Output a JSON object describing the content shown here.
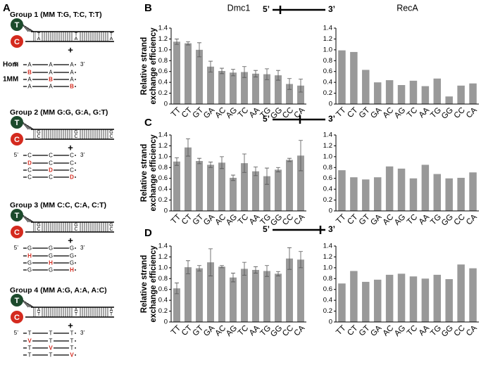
{
  "panels": [
    "A",
    "B",
    "C",
    "D"
  ],
  "substrates": [
    {
      "left": "5’",
      "right": "3’"
    },
    {
      "left": "5’",
      "right": "3’"
    },
    {
      "left": "5’",
      "right": "3’"
    }
  ],
  "diagram": {
    "hom": "Hom",
    "mm": "1MM",
    "plus": "+",
    "five": "5’",
    "three": "3’",
    "donor_top": "T",
    "donor_bottom": "C",
    "groups": [
      {
        "title": "Group 1 (MM T:G, T:C, T:T)",
        "pair": [
          "T",
          "A"
        ],
        "base": "A",
        "mismatch": "B"
      },
      {
        "title": "Group 2 (MM G:G, G:A, G:T)",
        "pair": [
          "G",
          "C"
        ],
        "base": "C",
        "mismatch": "D"
      },
      {
        "title": "Group 3 (MM C:C, C:A, C:T)",
        "pair": [
          "G",
          "C"
        ],
        "base": "G",
        "mismatch": "H"
      },
      {
        "title": "Group 4 (MM A:G, A:A, A:C)",
        "pair": [
          "A",
          "T"
        ],
        "base": "T",
        "mismatch": "V"
      }
    ]
  },
  "chart_data": [
    {
      "type": "bar",
      "title": "Dmc1",
      "ylabel": [
        "Relative strand",
        "exchange efficiency"
      ],
      "color": "#999999",
      "categories": [
        "TT",
        "CT",
        "GT",
        "GA",
        "AC",
        "AG",
        "TC",
        "AA",
        "TG",
        "GG",
        "CC",
        "CA"
      ],
      "values": [
        1.15,
        1.12,
        1.0,
        0.69,
        0.61,
        0.58,
        0.59,
        0.56,
        0.55,
        0.53,
        0.37,
        0.34
      ],
      "errors": [
        0.05,
        0.03,
        0.13,
        0.1,
        0.05,
        0.06,
        0.1,
        0.06,
        0.1,
        0.09,
        0.1,
        0.12
      ],
      "ylim": [
        0,
        1.4
      ],
      "yticks": [
        0,
        0.2,
        0.4,
        0.6,
        0.8,
        {
          "value": 1,
          "label": "1.0"
        },
        1.2,
        1.4
      ]
    },
    {
      "type": "bar",
      "title": "RecA",
      "color": "#999999",
      "categories": [
        "TT",
        "CT",
        "GT",
        "GA",
        "AC",
        "AG",
        "TC",
        "AA",
        "TG",
        "GG",
        "CC",
        "CA"
      ],
      "values": [
        0.99,
        0.96,
        0.63,
        0.4,
        0.44,
        0.35,
        0.43,
        0.33,
        0.47,
        0.14,
        0.34,
        0.38
      ],
      "ylim": [
        0,
        1.4
      ],
      "yticks": [
        0,
        0.2,
        0.4,
        0.6,
        0.8,
        {
          "value": 1,
          "label": "1.0"
        },
        1.2,
        1.4
      ]
    },
    {
      "type": "bar",
      "ylabel": [
        "Relative strand",
        "exchange efficiency"
      ],
      "color": "#999999",
      "categories": [
        "TT",
        "CT",
        "GT",
        "GA",
        "AC",
        "AG",
        "TC",
        "AA",
        "TG",
        "GG",
        "CC",
        "CA"
      ],
      "values": [
        0.91,
        1.17,
        0.92,
        0.85,
        0.89,
        0.61,
        0.88,
        0.73,
        0.64,
        0.76,
        0.94,
        1.02
      ],
      "errors": [
        0.07,
        0.16,
        0.05,
        0.05,
        0.11,
        0.05,
        0.17,
        0.08,
        0.15,
        0.04,
        0.03,
        0.28
      ],
      "ylim": [
        0,
        1.4
      ],
      "yticks": [
        0,
        0.2,
        0.4,
        0.6,
        0.8,
        {
          "value": 1,
          "label": "1.0"
        },
        1.2,
        1.4
      ]
    },
    {
      "type": "bar",
      "color": "#999999",
      "categories": [
        "TT",
        "CT",
        "GT",
        "GA",
        "AC",
        "AG",
        "TC",
        "AA",
        "TG",
        "GG",
        "CC",
        "CA"
      ],
      "values": [
        0.75,
        0.62,
        0.58,
        0.62,
        0.82,
        0.78,
        0.6,
        0.85,
        0.68,
        0.6,
        0.61,
        0.71
      ],
      "ylim": [
        0,
        1.4
      ],
      "yticks": [
        0,
        0.2,
        0.4,
        0.6,
        0.8,
        {
          "value": 1,
          "label": "1.0"
        },
        1.2,
        1.4
      ]
    },
    {
      "type": "bar",
      "ylabel": [
        "Relative strand",
        "exchange efficiency"
      ],
      "color": "#999999",
      "categories": [
        "TT",
        "CT",
        "GT",
        "GA",
        "AC",
        "AG",
        "TC",
        "AA",
        "TG",
        "GG",
        "CC",
        "CA"
      ],
      "values": [
        0.62,
        1.01,
        0.99,
        1.1,
        1.02,
        0.82,
        0.98,
        0.96,
        0.94,
        0.89,
        1.17,
        1.15
      ],
      "errors": [
        0.1,
        0.12,
        0.05,
        0.25,
        0.02,
        0.08,
        0.12,
        0.06,
        0.1,
        0.04,
        0.2,
        0.15
      ],
      "ylim": [
        0,
        1.4
      ],
      "yticks": [
        0,
        0.2,
        0.4,
        0.6,
        0.8,
        {
          "value": 1,
          "label": "1.0"
        },
        1.2,
        1.4
      ]
    },
    {
      "type": "bar",
      "color": "#999999",
      "categories": [
        "TT",
        "CT",
        "GT",
        "GA",
        "AC",
        "AG",
        "TC",
        "AA",
        "TG",
        "GG",
        "CC",
        "CA"
      ],
      "values": [
        0.71,
        0.94,
        0.74,
        0.78,
        0.87,
        0.89,
        0.84,
        0.8,
        0.87,
        0.79,
        1.06,
        0.99
      ],
      "ylim": [
        0,
        1.4
      ],
      "yticks": [
        0,
        0.2,
        0.4,
        0.6,
        0.8,
        {
          "value": 1,
          "label": "1.0"
        },
        1.2,
        1.4
      ]
    }
  ]
}
